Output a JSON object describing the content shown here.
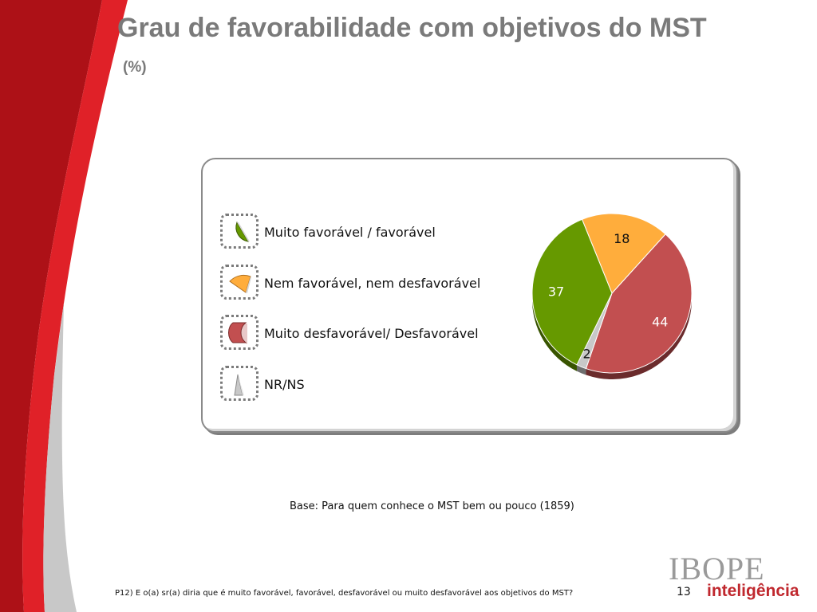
{
  "header": {
    "title": "Grau de favorabilidade com objetivos do MST",
    "subtitle": "(%)"
  },
  "chart_data": {
    "type": "pie",
    "categories": [
      "Muito favorável / favorável",
      "Nem favorável, nem desfavorável",
      "Muito desfavorável/ Desfavorável",
      "NR/NS"
    ],
    "values": [
      37,
      18,
      44,
      2
    ],
    "data_labels": [
      "37",
      "18",
      "44",
      "2"
    ],
    "colors": [
      "#669900",
      "#ffad3c",
      "#c24f50",
      "#c8c8c8"
    ],
    "label_colors": [
      "#ffffff",
      "#111111",
      "#ffffff",
      "#111111"
    ],
    "legend_position": "left",
    "style": "3d"
  },
  "footer": {
    "base_note": "Base: Para quem conhece o MST bem ou pouco (1859)",
    "question": "P12) E o(a) sr(a) diria que é muito favorável, favorável, desfavorável ou muito desfavorável aos objetivos do MST?",
    "page_number": "13"
  },
  "brand": {
    "name": "IBOPE",
    "sub": "inteligência"
  }
}
